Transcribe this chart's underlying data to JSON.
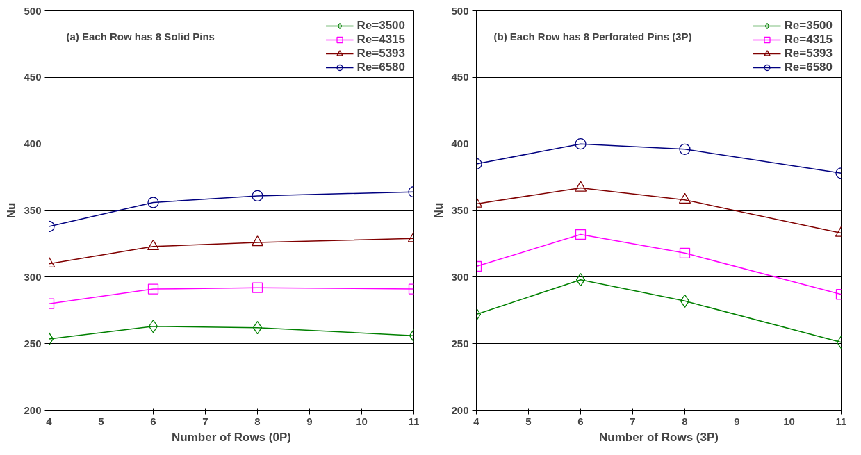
{
  "chart_data": [
    {
      "type": "line",
      "title": "(a) Each Row has 8 Solid Pins",
      "xlabel": "Number of Rows (0P)",
      "ylabel": "Nu",
      "x": [
        4,
        6,
        8,
        11
      ],
      "xlim": [
        4,
        11
      ],
      "xticks": [
        4,
        5,
        6,
        7,
        8,
        9,
        10,
        11
      ],
      "ylim": [
        200,
        500
      ],
      "yticks": [
        200,
        250,
        300,
        350,
        400,
        450,
        500
      ],
      "grid": "y",
      "legend": "top right",
      "series": [
        {
          "name": "Re=3500",
          "color": "#008000",
          "marker": "diamond",
          "values": [
            253.5,
            263,
            262,
            256
          ]
        },
        {
          "name": "Re=4315",
          "color": "#ff00ff",
          "marker": "square",
          "values": [
            280,
            291,
            292,
            291
          ]
        },
        {
          "name": "Re=5393",
          "color": "#800000",
          "marker": "triangle",
          "values": [
            310,
            323,
            326,
            329
          ]
        },
        {
          "name": "Re=6580",
          "color": "#000080",
          "marker": "circle",
          "values": [
            338,
            356,
            361,
            364
          ]
        }
      ]
    },
    {
      "type": "line",
      "title": "(b) Each Row has 8 Perforated Pins (3P)",
      "xlabel": "Number of Rows (3P)",
      "ylabel": "Nu",
      "x": [
        4,
        6,
        8,
        11
      ],
      "xlim": [
        4,
        11
      ],
      "xticks": [
        4,
        5,
        6,
        7,
        8,
        9,
        10,
        11
      ],
      "ylim": [
        200,
        500
      ],
      "yticks": [
        200,
        250,
        300,
        350,
        400,
        450,
        500
      ],
      "grid": "y",
      "legend": "top right",
      "series": [
        {
          "name": "Re=3500",
          "color": "#008000",
          "marker": "diamond",
          "values": [
            272,
            298,
            282,
            251
          ]
        },
        {
          "name": "Re=4315",
          "color": "#ff00ff",
          "marker": "square",
          "values": [
            308,
            332,
            318,
            287
          ]
        },
        {
          "name": "Re=5393",
          "color": "#800000",
          "marker": "triangle",
          "values": [
            355,
            367,
            358,
            333
          ]
        },
        {
          "name": "Re=6580",
          "color": "#000080",
          "marker": "circle",
          "values": [
            385,
            400,
            396,
            378
          ]
        }
      ]
    }
  ]
}
